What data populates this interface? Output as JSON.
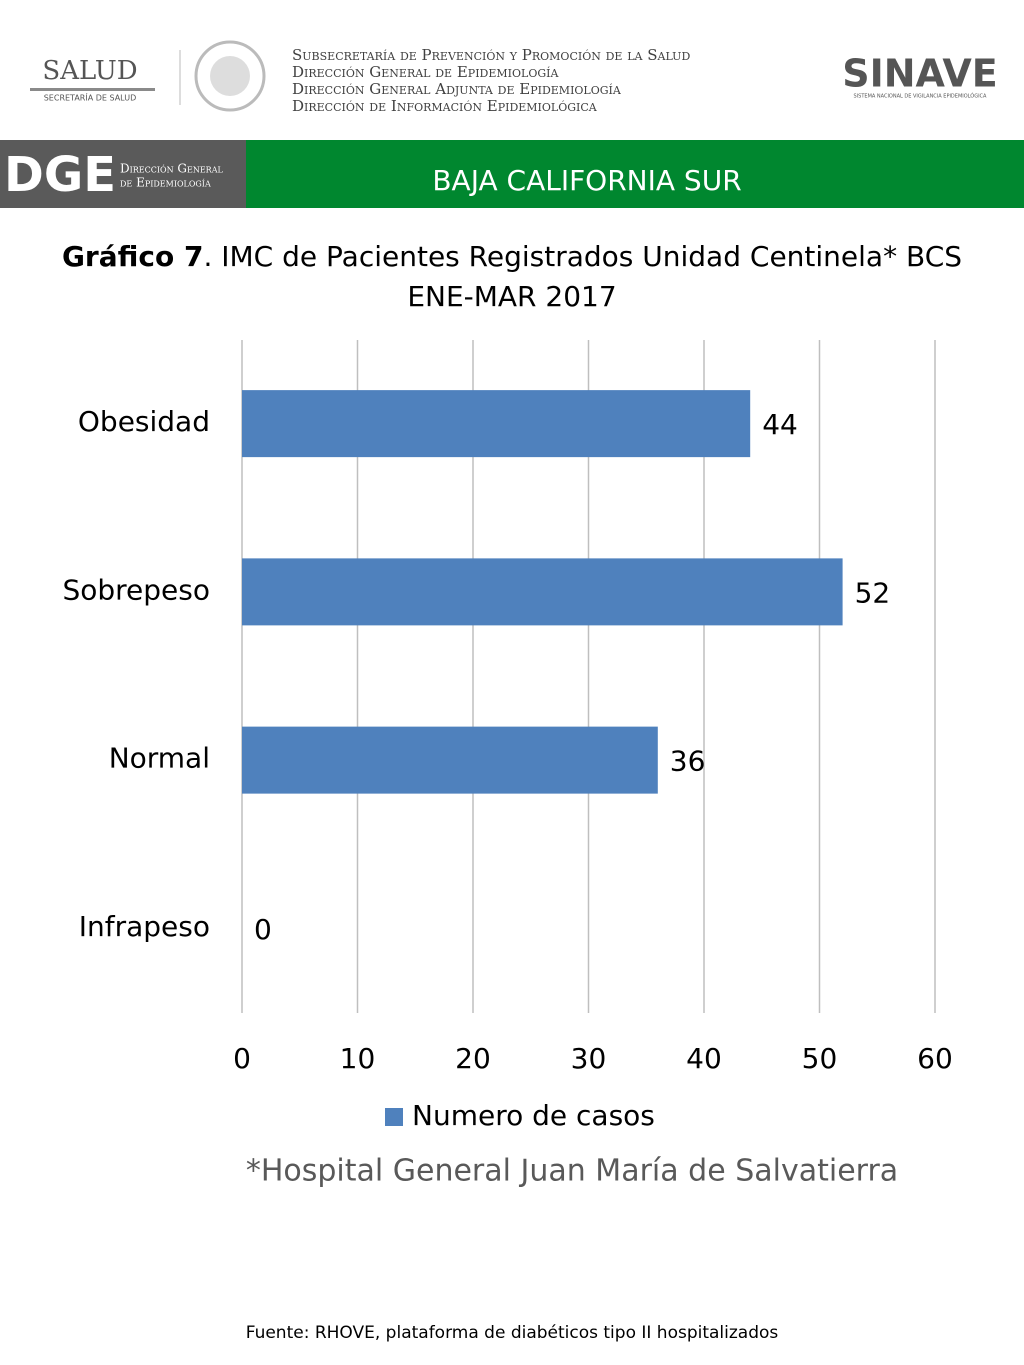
{
  "header": {
    "salud": "SALUD",
    "secretaria": "SECRETARÍA DE SALUD",
    "lines": [
      "Subsecretaría de Prevención y Promoción de la Salud",
      "Dirección General de Epidemiología",
      "Dirección General Adjunta de Epidemiología",
      "Dirección de Información Epidemiológica"
    ],
    "sinave": "SINAVE",
    "sinave_sub": "SISTEMA NACIONAL DE VIGILANCIA EPIDEMIOLÓGICA",
    "dge": "DGE",
    "dge_line1": "Dirección General",
    "dge_line2": "de Epidemiología",
    "state": "BAJA CALIFORNIA SUR"
  },
  "chart_data": {
    "type": "hbar",
    "title_bold": "Gráfico 7",
    "title": ". IMC de Pacientes Registrados Unidad Centinela* BCS",
    "title_line2": "ENE-MAR 2017",
    "categories": [
      "Obesidad",
      "Sobrepeso",
      "Normal",
      "Infrapeso"
    ],
    "series": [
      {
        "name": "Numero de casos",
        "color": "#4f81bd",
        "values": [
          44,
          52,
          36,
          0
        ]
      }
    ],
    "xlim": [
      0,
      60
    ],
    "xticks": [
      0,
      10,
      20,
      30,
      40,
      50,
      60
    ],
    "grid": true,
    "legend": "bottom",
    "note": "*Hospital General Juan María de Salvatierra"
  },
  "footer": "Fuente: RHOVE, plataforma de diabéticos tipo II hospitalizados"
}
